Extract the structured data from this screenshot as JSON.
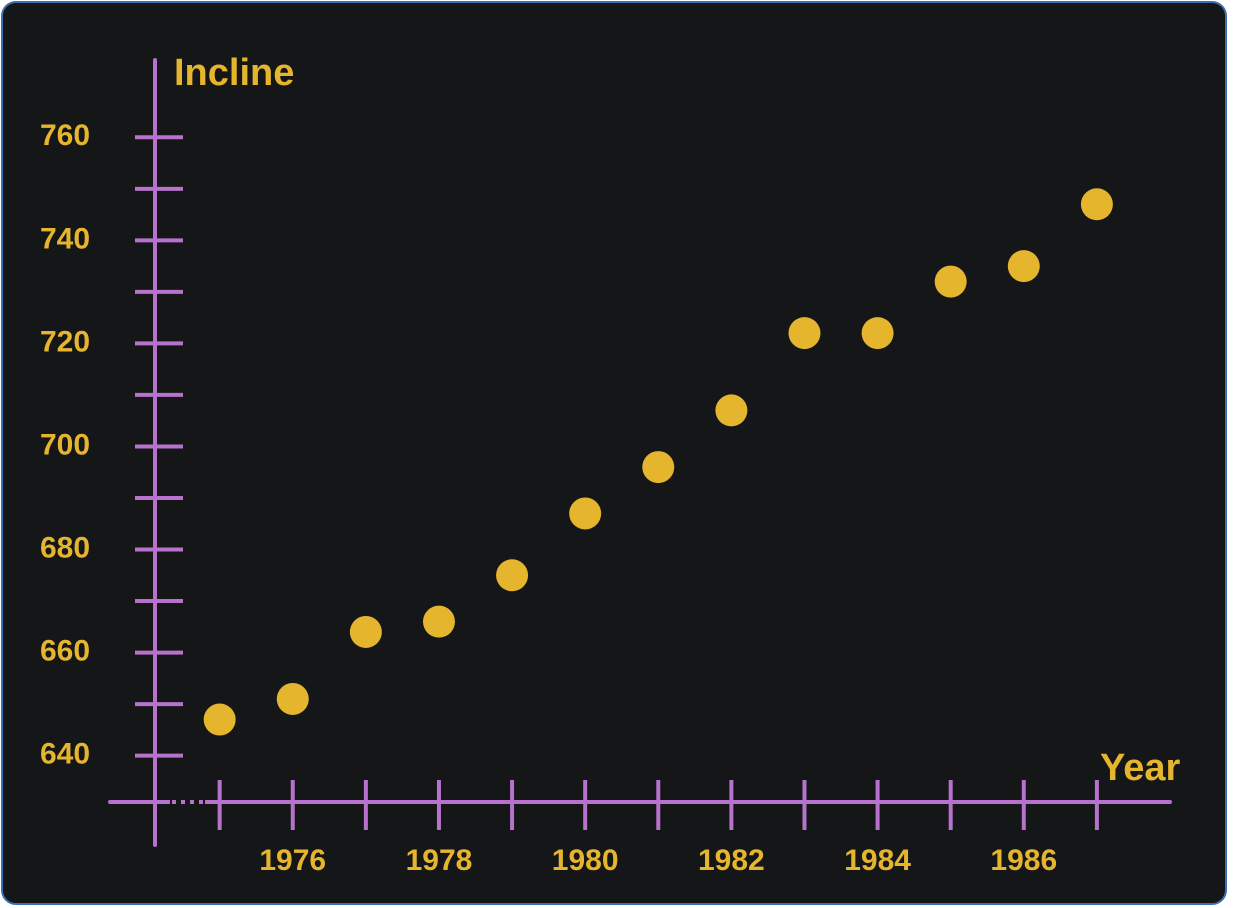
{
  "chart_data": {
    "type": "scatter",
    "y_label": "Incline",
    "x_label": "Year",
    "x": [
      1975,
      1976,
      1977,
      1978,
      1979,
      1980,
      1981,
      1982,
      1983,
      1984,
      1985,
      1986,
      1987
    ],
    "values": [
      647,
      651,
      664,
      666,
      675,
      687,
      696,
      707,
      722,
      722,
      732,
      735,
      747
    ],
    "color": "#e6b52e",
    "axis_color": "#b672cc",
    "xlim": [
      1973.5,
      1988
    ],
    "ylim": [
      631,
      775
    ],
    "xticks": [
      1976,
      1978,
      1980,
      1982,
      1984,
      1986
    ],
    "xminor_ticks": [
      1975,
      1977,
      1979,
      1981,
      1983,
      1985,
      1987
    ],
    "yticks": [
      640,
      660,
      680,
      700,
      720,
      740,
      760
    ],
    "yminor_ticks": [
      650,
      670,
      690,
      710,
      730,
      750
    ]
  }
}
